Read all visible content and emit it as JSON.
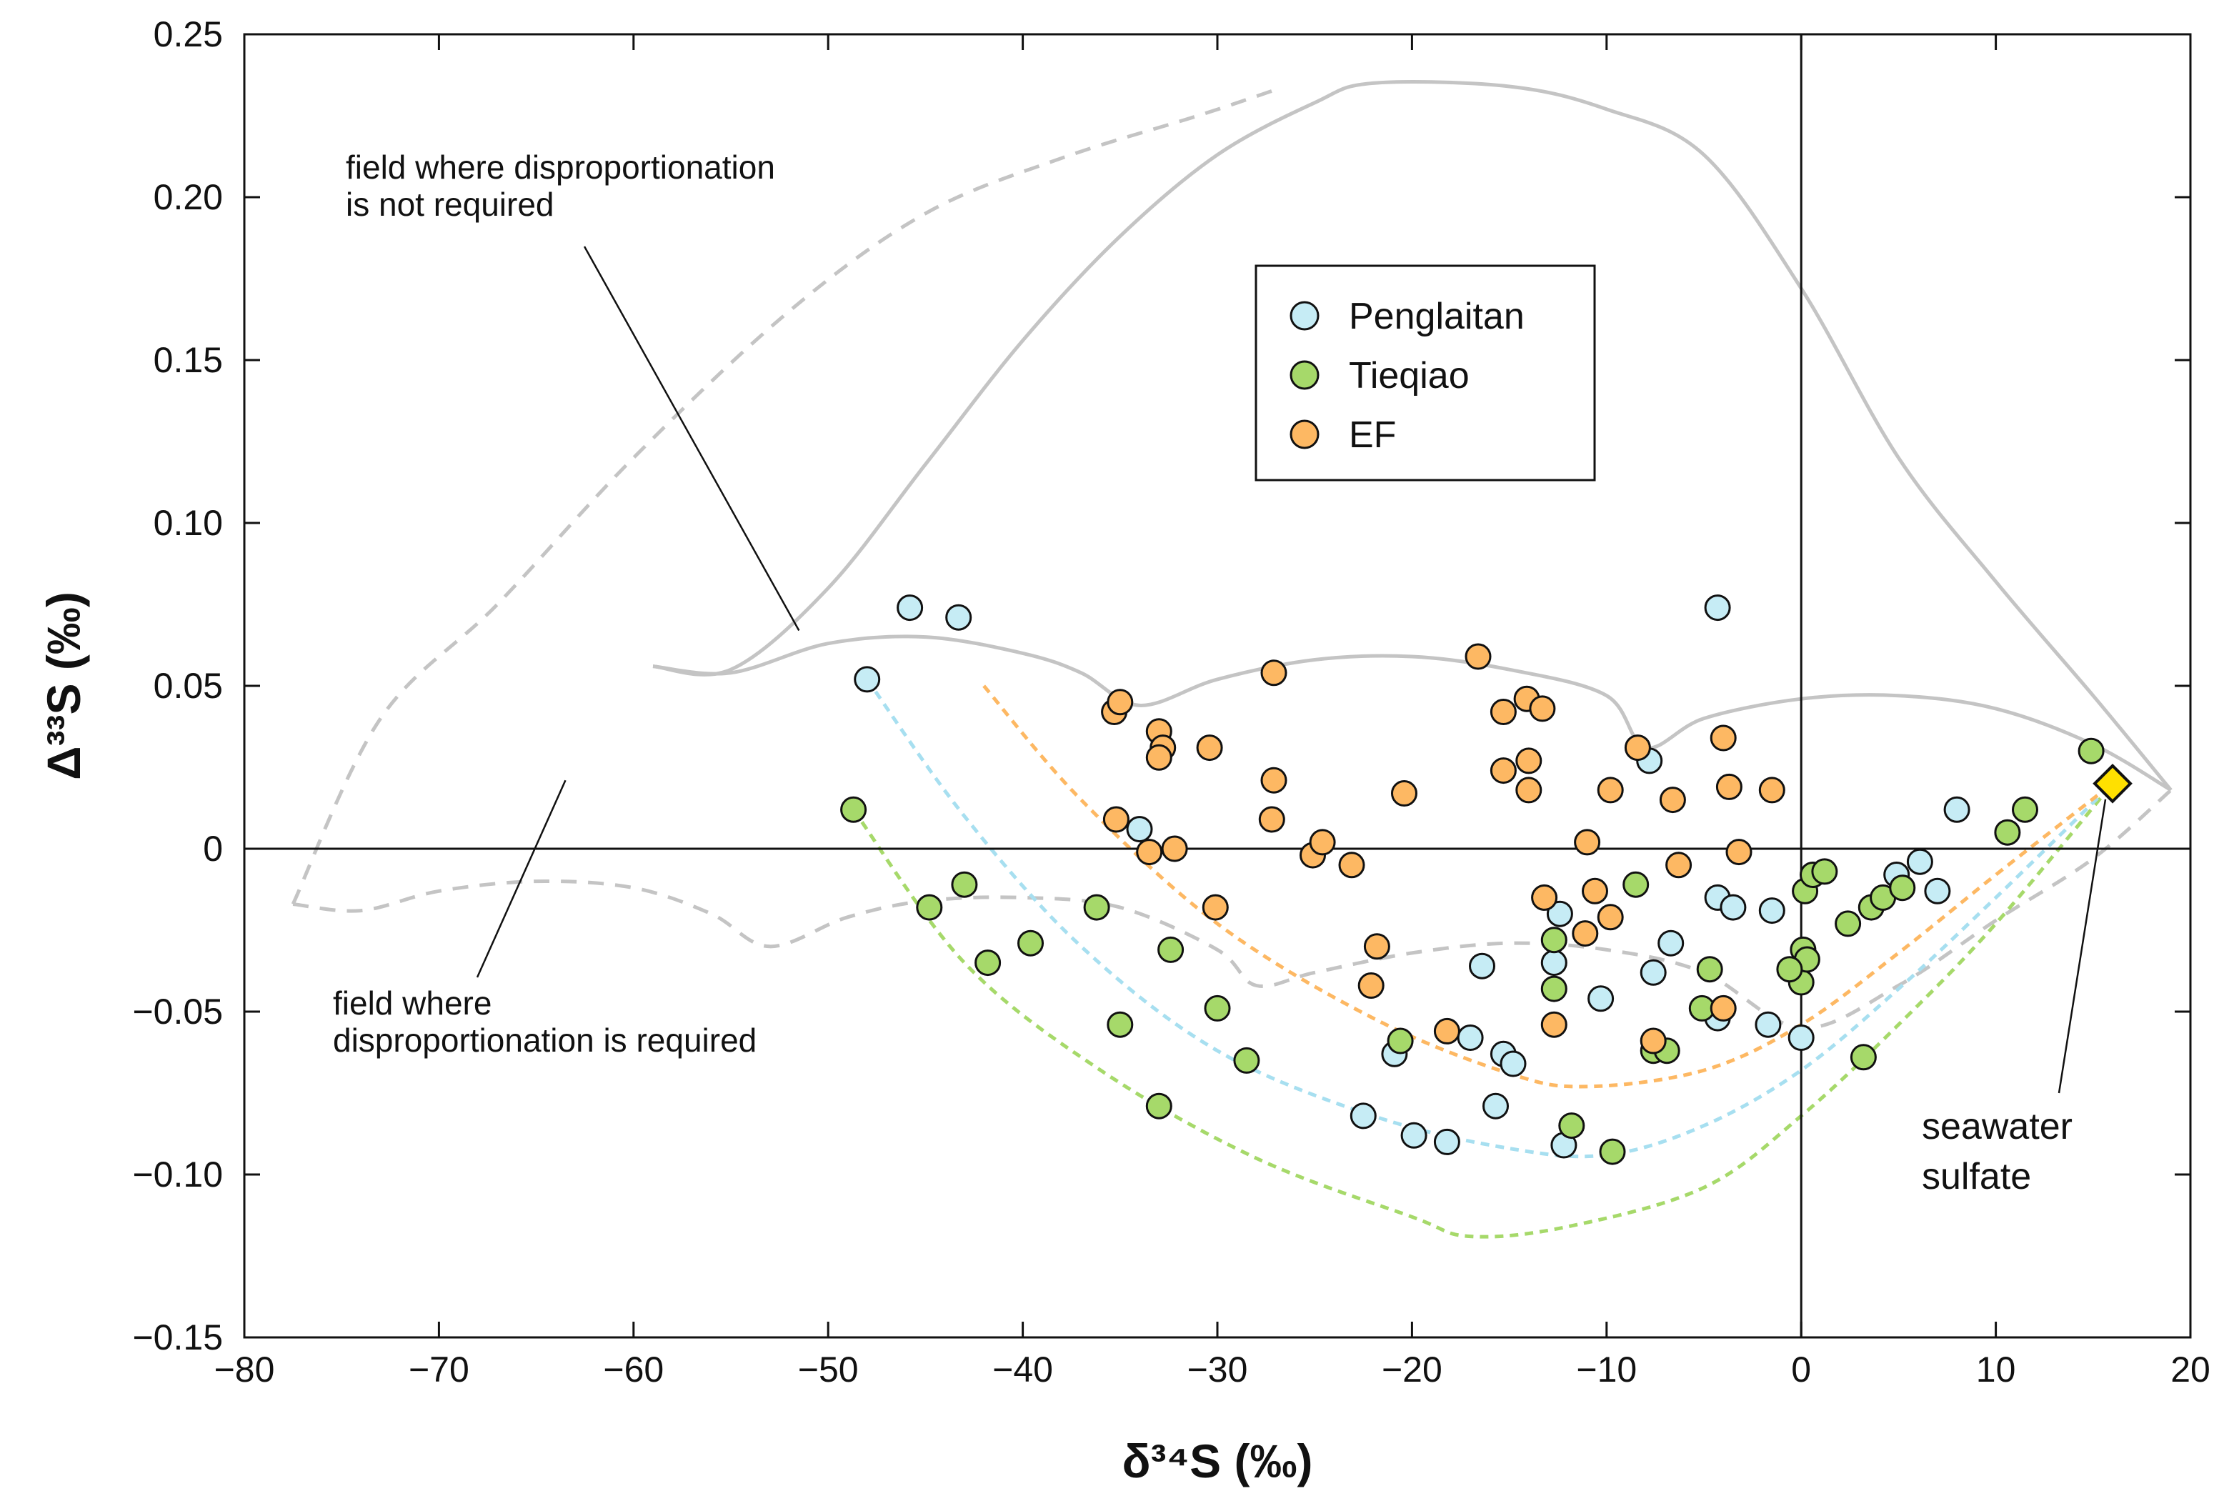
{
  "chart_data": {
    "type": "scatter",
    "xlabel": "δ³⁴S (‰)",
    "ylabel": "Δ³³S (‰)",
    "xlim": [
      -80,
      20
    ],
    "ylim": [
      -0.15,
      0.25
    ],
    "x_ticks": [
      -80,
      -70,
      -60,
      -50,
      -40,
      -30,
      -20,
      -10,
      0,
      10,
      20
    ],
    "x_tick_labels": [
      "−80",
      "−70",
      "−60",
      "−50",
      "−40",
      "−30",
      "−20",
      "−10",
      "0",
      "10",
      "20"
    ],
    "y_ticks": [
      -0.15,
      -0.1,
      -0.05,
      0,
      0.05,
      0.1,
      0.15,
      0.2,
      0.25
    ],
    "y_tick_labels": [
      "−0.15",
      "−0.10",
      "−0.05",
      "0",
      "0.05",
      "0.10",
      "0.15",
      "0.20",
      "0.25"
    ],
    "grid": false,
    "reference_lines": {
      "x": 0,
      "y": 0
    },
    "legend": {
      "position": "upper-center",
      "entries": [
        "Penglaitan",
        "Tieqiao",
        "EF"
      ]
    },
    "series": [
      {
        "name": "Penglaitan",
        "color": "#c6ecf5",
        "points": [
          [
            -45.8,
            0.074
          ],
          [
            -43.3,
            0.071
          ],
          [
            -48.0,
            0.052
          ],
          [
            -4.3,
            0.074
          ],
          [
            -34.0,
            0.006
          ],
          [
            -7.8,
            0.027
          ],
          [
            -12.4,
            -0.02
          ],
          [
            -4.3,
            -0.015
          ],
          [
            -3.5,
            -0.018
          ],
          [
            -1.5,
            -0.019
          ],
          [
            -12.7,
            -0.035
          ],
          [
            -16.4,
            -0.036
          ],
          [
            -7.6,
            -0.038
          ],
          [
            -6.7,
            -0.029
          ],
          [
            -4.3,
            -0.052
          ],
          [
            -1.7,
            -0.054
          ],
          [
            0.0,
            -0.058
          ],
          [
            -10.3,
            -0.046
          ],
          [
            -17.0,
            -0.058
          ],
          [
            -15.3,
            -0.063
          ],
          [
            -14.8,
            -0.066
          ],
          [
            -20.9,
            -0.063
          ],
          [
            -22.5,
            -0.082
          ],
          [
            -19.9,
            -0.088
          ],
          [
            -18.2,
            -0.09
          ],
          [
            -15.7,
            -0.079
          ],
          [
            -12.2,
            -0.091
          ],
          [
            4.9,
            -0.008
          ],
          [
            6.1,
            -0.004
          ],
          [
            7.0,
            -0.013
          ],
          [
            8.0,
            0.012
          ]
        ]
      },
      {
        "name": "Tieqiao",
        "color": "#a6d96a",
        "points": [
          [
            -48.7,
            0.012
          ],
          [
            -44.8,
            -0.018
          ],
          [
            -43.0,
            -0.011
          ],
          [
            -41.8,
            -0.035
          ],
          [
            -39.6,
            -0.029
          ],
          [
            -36.2,
            -0.018
          ],
          [
            -35.0,
            -0.054
          ],
          [
            -32.4,
            -0.031
          ],
          [
            -33.0,
            -0.079
          ],
          [
            -30.0,
            -0.049
          ],
          [
            -28.5,
            -0.065
          ],
          [
            -20.6,
            -0.059
          ],
          [
            -12.7,
            -0.043
          ],
          [
            -12.7,
            -0.028
          ],
          [
            -11.8,
            -0.085
          ],
          [
            -9.7,
            -0.093
          ],
          [
            -8.5,
            -0.011
          ],
          [
            -7.6,
            -0.062
          ],
          [
            -6.9,
            -0.062
          ],
          [
            -5.1,
            -0.049
          ],
          [
            -4.7,
            -0.037
          ],
          [
            0.2,
            -0.013
          ],
          [
            0.6,
            -0.008
          ],
          [
            1.2,
            -0.007
          ],
          [
            0.0,
            -0.041
          ],
          [
            0.1,
            -0.031
          ],
          [
            0.3,
            -0.034
          ],
          [
            -0.6,
            -0.037
          ],
          [
            2.4,
            -0.023
          ],
          [
            3.2,
            -0.064
          ],
          [
            3.6,
            -0.018
          ],
          [
            4.2,
            -0.015
          ],
          [
            5.2,
            -0.012
          ],
          [
            10.6,
            0.005
          ],
          [
            11.5,
            0.012
          ],
          [
            14.9,
            0.03
          ]
        ]
      },
      {
        "name": "EF",
        "color": "#fdb863",
        "points": [
          [
            -35.3,
            0.042
          ],
          [
            -35.0,
            0.045
          ],
          [
            -33.0,
            0.036
          ],
          [
            -32.8,
            0.031
          ],
          [
            -33.0,
            0.028
          ],
          [
            -30.4,
            0.031
          ],
          [
            -35.2,
            0.009
          ],
          [
            -33.5,
            -0.001
          ],
          [
            -32.2,
            0.0
          ],
          [
            -27.1,
            0.054
          ],
          [
            -27.1,
            0.021
          ],
          [
            -27.2,
            0.009
          ],
          [
            -30.1,
            -0.018
          ],
          [
            -25.1,
            -0.002
          ],
          [
            -24.6,
            0.002
          ],
          [
            -23.1,
            -0.005
          ],
          [
            -21.8,
            -0.03
          ],
          [
            -22.1,
            -0.042
          ],
          [
            -20.4,
            0.017
          ],
          [
            -18.2,
            -0.056
          ],
          [
            -16.6,
            0.059
          ],
          [
            -15.3,
            0.042
          ],
          [
            -14.1,
            0.046
          ],
          [
            -14.0,
            0.027
          ],
          [
            -14.0,
            0.018
          ],
          [
            -15.3,
            0.024
          ],
          [
            -13.3,
            0.043
          ],
          [
            -13.2,
            -0.015
          ],
          [
            -12.7,
            -0.054
          ],
          [
            -11.0,
            0.002
          ],
          [
            -11.1,
            -0.026
          ],
          [
            -10.6,
            -0.013
          ],
          [
            -9.8,
            -0.021
          ],
          [
            -9.8,
            0.018
          ],
          [
            -8.4,
            0.031
          ],
          [
            -7.6,
            -0.059
          ],
          [
            -6.6,
            0.015
          ],
          [
            -6.3,
            -0.005
          ],
          [
            -4.0,
            0.034
          ],
          [
            -3.7,
            0.019
          ],
          [
            -3.2,
            -0.001
          ],
          [
            -1.5,
            0.018
          ],
          [
            -4.0,
            -0.049
          ]
        ]
      }
    ],
    "seawater_sulfate": {
      "label": [
        "seawater",
        "sulfate"
      ],
      "x": 16.0,
      "y": 0.02,
      "color": "#ffe000"
    },
    "field_annotations": [
      {
        "lines": [
          "field where disproportionation",
          "is not required"
        ],
        "anchor": [
          -51.5,
          0.067
        ]
      },
      {
        "lines": [
          "field where",
          "disproportionation is required"
        ],
        "anchor": [
          -63.5,
          0.021
        ]
      }
    ],
    "field_boundaries": {
      "not_required_outer": [
        [
          -59,
          0.056
        ],
        [
          -55,
          0.055
        ],
        [
          -50,
          0.08
        ],
        [
          -45,
          0.118
        ],
        [
          -40,
          0.156
        ],
        [
          -35,
          0.188
        ],
        [
          -30,
          0.213
        ],
        [
          -25,
          0.229
        ],
        [
          -22,
          0.235
        ],
        [
          -15,
          0.234
        ],
        [
          -10,
          0.227
        ],
        [
          -5,
          0.213
        ],
        [
          0,
          0.172
        ],
        [
          5,
          0.12
        ],
        [
          10,
          0.082
        ],
        [
          15,
          0.047
        ],
        [
          19,
          0.018
        ]
      ],
      "not_required_lower": [
        [
          -59,
          0.056
        ],
        [
          -55,
          0.054
        ],
        [
          -50,
          0.063
        ],
        [
          -45,
          0.065
        ],
        [
          -40,
          0.06
        ],
        [
          -37,
          0.054
        ],
        [
          -34,
          0.044
        ],
        [
          -30,
          0.052
        ],
        [
          -25,
          0.058
        ],
        [
          -20,
          0.059
        ],
        [
          -15,
          0.055
        ],
        [
          -10,
          0.047
        ],
        [
          -8,
          0.031
        ],
        [
          -5,
          0.04
        ],
        [
          0,
          0.046
        ],
        [
          5,
          0.047
        ],
        [
          10,
          0.043
        ],
        [
          15,
          0.032
        ],
        [
          19,
          0.018
        ]
      ],
      "required_outer": [
        [
          -77.5,
          -0.017
        ],
        [
          -73,
          0.04
        ],
        [
          -67,
          0.075
        ],
        [
          -60,
          0.12
        ],
        [
          -52,
          0.165
        ],
        [
          -45,
          0.195
        ],
        [
          -38,
          0.212
        ],
        [
          -31,
          0.225
        ],
        [
          -27,
          0.233
        ]
      ],
      "required_lower": [
        [
          -77.5,
          -0.017
        ],
        [
          -74,
          -0.019
        ],
        [
          -70,
          -0.013
        ],
        [
          -65,
          -0.01
        ],
        [
          -60,
          -0.012
        ],
        [
          -56,
          -0.02
        ],
        [
          -53,
          -0.03
        ],
        [
          -49,
          -0.021
        ],
        [
          -45,
          -0.016
        ],
        [
          -40,
          -0.015
        ],
        [
          -35,
          -0.018
        ],
        [
          -30,
          -0.031
        ],
        [
          -28,
          -0.042
        ],
        [
          -25,
          -0.038
        ],
        [
          -20,
          -0.032
        ],
        [
          -15,
          -0.029
        ],
        [
          -10,
          -0.031
        ],
        [
          -5,
          -0.038
        ],
        [
          0,
          -0.055
        ],
        [
          5,
          -0.042
        ],
        [
          10,
          -0.022
        ],
        [
          15,
          -0.003
        ],
        [
          19,
          0.018
        ]
      ]
    },
    "mixing_curves": [
      {
        "color": "#a6d96a",
        "points": [
          [
            -48.7,
            0.012
          ],
          [
            -43,
            -0.035
          ],
          [
            -36,
            -0.068
          ],
          [
            -28,
            -0.095
          ],
          [
            -20,
            -0.113
          ],
          [
            -17,
            -0.119
          ],
          [
            -12,
            -0.116
          ],
          [
            -5,
            -0.104
          ],
          [
            0,
            -0.082
          ],
          [
            5,
            -0.054
          ],
          [
            10,
            -0.023
          ],
          [
            16,
            0.02
          ]
        ]
      },
      {
        "color": "#a7dff0",
        "points": [
          [
            -48,
            0.052
          ],
          [
            -43,
            0.01
          ],
          [
            -37,
            -0.03
          ],
          [
            -30,
            -0.062
          ],
          [
            -22,
            -0.082
          ],
          [
            -15,
            -0.092
          ],
          [
            -10,
            -0.094
          ],
          [
            -5,
            -0.085
          ],
          [
            0,
            -0.068
          ],
          [
            5,
            -0.043
          ],
          [
            10,
            -0.015
          ],
          [
            16,
            0.02
          ]
        ]
      },
      {
        "color": "#fdb863",
        "points": [
          [
            -42,
            0.05
          ],
          [
            -37,
            0.015
          ],
          [
            -30,
            -0.023
          ],
          [
            -22,
            -0.052
          ],
          [
            -15,
            -0.069
          ],
          [
            -11,
            -0.073
          ],
          [
            -5,
            -0.068
          ],
          [
            0,
            -0.054
          ],
          [
            5,
            -0.032
          ],
          [
            10,
            -0.008
          ],
          [
            16,
            0.02
          ]
        ]
      }
    ]
  }
}
